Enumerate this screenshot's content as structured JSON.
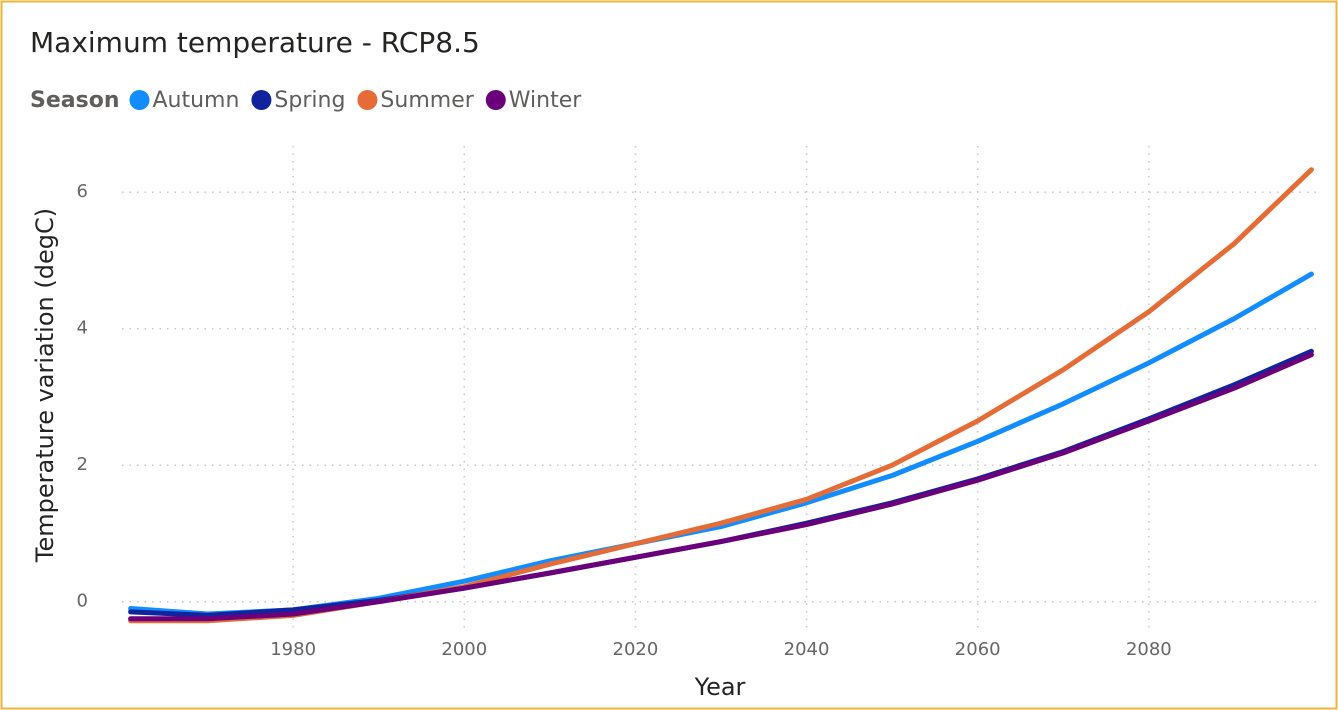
{
  "chart_data": {
    "type": "line",
    "title": "Maximum temperature - RCP8.5",
    "legend_title": "Season",
    "x_label": "Year",
    "y_label": "Temperature variation (degC)",
    "x": [
      1961,
      1970,
      1980,
      1990,
      2000,
      2010,
      2020,
      2030,
      2040,
      2050,
      2060,
      2070,
      2080,
      2090,
      2099
    ],
    "series": [
      {
        "name": "Autumn",
        "color": "#118dff",
        "values": [
          -0.1,
          -0.18,
          -0.12,
          0.05,
          0.3,
          0.6,
          0.85,
          1.1,
          1.45,
          1.85,
          2.35,
          2.9,
          3.5,
          4.15,
          4.8
        ]
      },
      {
        "name": "Spring",
        "color": "#12239e",
        "values": [
          -0.15,
          -0.2,
          -0.12,
          0.02,
          0.2,
          0.42,
          0.65,
          0.88,
          1.15,
          1.45,
          1.8,
          2.2,
          2.68,
          3.18,
          3.67
        ]
      },
      {
        "name": "Summer",
        "color": "#e66c37",
        "values": [
          -0.28,
          -0.28,
          -0.2,
          0.0,
          0.22,
          0.55,
          0.85,
          1.15,
          1.5,
          2.0,
          2.65,
          3.4,
          4.25,
          5.25,
          6.33
        ]
      },
      {
        "name": "Winter",
        "color": "#6b007b",
        "values": [
          -0.25,
          -0.25,
          -0.18,
          0.0,
          0.2,
          0.42,
          0.65,
          0.88,
          1.13,
          1.43,
          1.78,
          2.18,
          2.65,
          3.13,
          3.62
        ]
      }
    ],
    "xlim": [
      1960,
      2100
    ],
    "xticks": [
      1980,
      2000,
      2020,
      2040,
      2060,
      2080
    ],
    "ylim": [
      -0.4,
      7
    ],
    "yticks": [
      0,
      2,
      4,
      6
    ],
    "grid": true
  }
}
